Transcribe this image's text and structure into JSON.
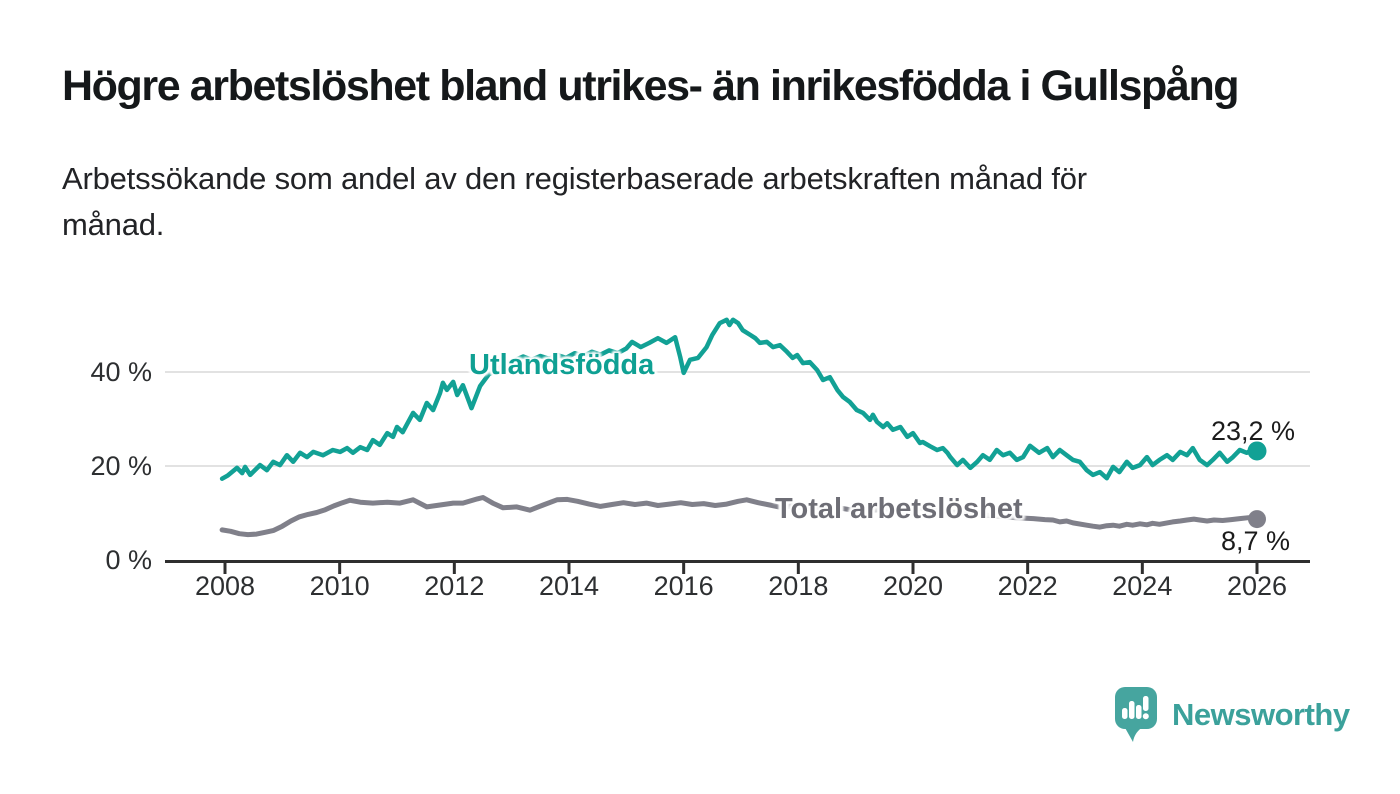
{
  "header": {
    "title": "Högre arbetslöshet bland utrikes- än inrikesfödda i Gullspång",
    "subtitle_lines": [
      "Arbetssökande som andel av den registerbaserade arbetskraften månad för",
      "månad."
    ]
  },
  "chart_data": {
    "type": "line",
    "title": "Högre arbetslöshet bland utrikes- än inrikesfödda i Gullspång",
    "subtitle": "Arbetssökande som andel av den registerbaserade arbetskraften månad för månad.",
    "unit": "%",
    "grid": "horizontal-only",
    "legend_position": "inline-labels",
    "x_range": [
      2007.95,
      2026.9
    ],
    "y_range": [
      0,
      53
    ],
    "x_ticks": [
      2008,
      2010,
      2012,
      2014,
      2016,
      2018,
      2020,
      2022,
      2024,
      2026
    ],
    "y_ticks": [
      {
        "value": 0,
        "label": "0 %"
      },
      {
        "value": 20,
        "label": "20 %"
      },
      {
        "value": 40,
        "label": "40 %"
      }
    ],
    "series": [
      {
        "name": "Utlandsfödda",
        "color": "#12a195",
        "end_label": "23,2 %",
        "end_value": 23.2,
        "points": [
          [
            2007.95,
            17.3
          ],
          [
            2008.05,
            18.0
          ],
          [
            2008.21,
            19.6
          ],
          [
            2008.3,
            18.5
          ],
          [
            2008.35,
            19.8
          ],
          [
            2008.44,
            18.1
          ],
          [
            2008.61,
            20.2
          ],
          [
            2008.73,
            19.1
          ],
          [
            2008.84,
            20.9
          ],
          [
            2008.96,
            20.2
          ],
          [
            2009.08,
            22.3
          ],
          [
            2009.19,
            20.9
          ],
          [
            2009.31,
            22.8
          ],
          [
            2009.43,
            21.9
          ],
          [
            2009.54,
            23.0
          ],
          [
            2009.71,
            22.3
          ],
          [
            2009.88,
            23.4
          ],
          [
            2010.01,
            23.0
          ],
          [
            2010.13,
            23.8
          ],
          [
            2010.23,
            22.8
          ],
          [
            2010.36,
            24.0
          ],
          [
            2010.48,
            23.4
          ],
          [
            2010.58,
            25.5
          ],
          [
            2010.7,
            24.5
          ],
          [
            2010.83,
            27.0
          ],
          [
            2010.93,
            26.2
          ],
          [
            2011.0,
            28.3
          ],
          [
            2011.1,
            27.2
          ],
          [
            2011.28,
            31.3
          ],
          [
            2011.4,
            29.8
          ],
          [
            2011.52,
            33.4
          ],
          [
            2011.63,
            31.9
          ],
          [
            2011.75,
            35.5
          ],
          [
            2011.8,
            37.7
          ],
          [
            2011.87,
            36.2
          ],
          [
            2011.98,
            37.9
          ],
          [
            2012.05,
            35.1
          ],
          [
            2012.15,
            37.2
          ],
          [
            2012.3,
            32.3
          ],
          [
            2012.45,
            37.0
          ],
          [
            2012.6,
            39.5
          ],
          [
            2012.75,
            40.5
          ],
          [
            2012.9,
            41.8
          ],
          [
            2013.05,
            42.5
          ],
          [
            2013.2,
            43.3
          ],
          [
            2013.35,
            42.6
          ],
          [
            2013.5,
            43.4
          ],
          [
            2013.65,
            42.8
          ],
          [
            2013.8,
            43.6
          ],
          [
            2013.95,
            43.0
          ],
          [
            2014.1,
            44.0
          ],
          [
            2014.25,
            43.4
          ],
          [
            2014.4,
            44.3
          ],
          [
            2014.55,
            43.7
          ],
          [
            2014.7,
            44.6
          ],
          [
            2014.85,
            44.0
          ],
          [
            2015.0,
            45.0
          ],
          [
            2015.1,
            46.4
          ],
          [
            2015.25,
            45.3
          ],
          [
            2015.4,
            46.2
          ],
          [
            2015.55,
            47.2
          ],
          [
            2015.7,
            46.2
          ],
          [
            2015.85,
            47.4
          ],
          [
            2015.94,
            43.2
          ],
          [
            2016.0,
            39.8
          ],
          [
            2016.11,
            42.6
          ],
          [
            2016.25,
            43.0
          ],
          [
            2016.4,
            45.3
          ],
          [
            2016.5,
            47.9
          ],
          [
            2016.63,
            50.4
          ],
          [
            2016.75,
            51.1
          ],
          [
            2016.8,
            50.0
          ],
          [
            2016.86,
            51.1
          ],
          [
            2016.95,
            50.4
          ],
          [
            2017.03,
            48.9
          ],
          [
            2017.16,
            47.9
          ],
          [
            2017.25,
            47.2
          ],
          [
            2017.33,
            46.2
          ],
          [
            2017.45,
            46.4
          ],
          [
            2017.56,
            45.3
          ],
          [
            2017.68,
            45.7
          ],
          [
            2017.8,
            44.3
          ],
          [
            2017.9,
            43.0
          ],
          [
            2017.98,
            43.6
          ],
          [
            2018.08,
            41.9
          ],
          [
            2018.2,
            42.1
          ],
          [
            2018.33,
            40.4
          ],
          [
            2018.43,
            38.3
          ],
          [
            2018.55,
            38.9
          ],
          [
            2018.68,
            36.2
          ],
          [
            2018.78,
            34.7
          ],
          [
            2018.9,
            33.6
          ],
          [
            2019.02,
            31.9
          ],
          [
            2019.13,
            31.3
          ],
          [
            2019.25,
            29.8
          ],
          [
            2019.3,
            30.9
          ],
          [
            2019.37,
            29.4
          ],
          [
            2019.48,
            28.3
          ],
          [
            2019.55,
            29.1
          ],
          [
            2019.65,
            27.7
          ],
          [
            2019.78,
            28.3
          ],
          [
            2019.9,
            26.2
          ],
          [
            2020.0,
            27.0
          ],
          [
            2020.12,
            24.9
          ],
          [
            2020.17,
            25.1
          ],
          [
            2020.3,
            24.2
          ],
          [
            2020.42,
            23.4
          ],
          [
            2020.52,
            23.8
          ],
          [
            2020.6,
            22.8
          ],
          [
            2020.65,
            21.9
          ],
          [
            2020.77,
            20.2
          ],
          [
            2020.87,
            21.3
          ],
          [
            2021.0,
            19.6
          ],
          [
            2021.12,
            20.9
          ],
          [
            2021.22,
            22.3
          ],
          [
            2021.34,
            21.3
          ],
          [
            2021.46,
            23.4
          ],
          [
            2021.57,
            22.3
          ],
          [
            2021.69,
            22.8
          ],
          [
            2021.81,
            21.3
          ],
          [
            2021.92,
            21.9
          ],
          [
            2022.04,
            24.3
          ],
          [
            2022.2,
            22.8
          ],
          [
            2022.34,
            23.8
          ],
          [
            2022.44,
            21.9
          ],
          [
            2022.56,
            23.4
          ],
          [
            2022.68,
            22.3
          ],
          [
            2022.79,
            21.3
          ],
          [
            2022.91,
            20.9
          ],
          [
            2023.03,
            19.1
          ],
          [
            2023.14,
            18.1
          ],
          [
            2023.26,
            18.7
          ],
          [
            2023.38,
            17.4
          ],
          [
            2023.49,
            19.8
          ],
          [
            2023.6,
            18.7
          ],
          [
            2023.73,
            20.9
          ],
          [
            2023.83,
            19.6
          ],
          [
            2023.96,
            20.2
          ],
          [
            2024.08,
            21.9
          ],
          [
            2024.18,
            20.2
          ],
          [
            2024.3,
            21.3
          ],
          [
            2024.43,
            22.3
          ],
          [
            2024.53,
            21.3
          ],
          [
            2024.66,
            23.0
          ],
          [
            2024.78,
            22.3
          ],
          [
            2024.88,
            23.8
          ],
          [
            2025.0,
            21.3
          ],
          [
            2025.13,
            20.2
          ],
          [
            2025.23,
            21.3
          ],
          [
            2025.35,
            22.8
          ],
          [
            2025.48,
            20.9
          ],
          [
            2025.58,
            21.9
          ],
          [
            2025.7,
            23.4
          ],
          [
            2025.82,
            22.8
          ],
          [
            2025.91,
            23.4
          ],
          [
            2026.0,
            23.2
          ]
        ]
      },
      {
        "name": "Total arbetslöshet",
        "color": "#80808a",
        "end_label": "8,7 %",
        "end_value": 8.7,
        "points": [
          [
            2007.95,
            6.4
          ],
          [
            2008.1,
            6.1
          ],
          [
            2008.25,
            5.6
          ],
          [
            2008.4,
            5.4
          ],
          [
            2008.55,
            5.5
          ],
          [
            2008.7,
            5.9
          ],
          [
            2008.85,
            6.3
          ],
          [
            2009.0,
            7.2
          ],
          [
            2009.15,
            8.3
          ],
          [
            2009.3,
            9.2
          ],
          [
            2009.45,
            9.7
          ],
          [
            2009.6,
            10.1
          ],
          [
            2009.75,
            10.7
          ],
          [
            2009.9,
            11.5
          ],
          [
            2010.05,
            12.2
          ],
          [
            2010.18,
            12.7
          ],
          [
            2010.36,
            12.3
          ],
          [
            2010.58,
            12.1
          ],
          [
            2010.83,
            12.3
          ],
          [
            2011.05,
            12.1
          ],
          [
            2011.28,
            12.8
          ],
          [
            2011.52,
            11.3
          ],
          [
            2011.75,
            11.7
          ],
          [
            2011.98,
            12.1
          ],
          [
            2012.15,
            12.1
          ],
          [
            2012.4,
            13.0
          ],
          [
            2012.5,
            13.3
          ],
          [
            2012.67,
            12.1
          ],
          [
            2012.85,
            11.1
          ],
          [
            2013.09,
            11.3
          ],
          [
            2013.32,
            10.6
          ],
          [
            2013.55,
            11.7
          ],
          [
            2013.79,
            12.8
          ],
          [
            2013.97,
            12.9
          ],
          [
            2014.15,
            12.5
          ],
          [
            2014.35,
            11.9
          ],
          [
            2014.55,
            11.4
          ],
          [
            2014.75,
            11.8
          ],
          [
            2014.95,
            12.2
          ],
          [
            2015.15,
            11.8
          ],
          [
            2015.35,
            12.1
          ],
          [
            2015.55,
            11.6
          ],
          [
            2015.75,
            11.9
          ],
          [
            2015.95,
            12.2
          ],
          [
            2016.15,
            11.8
          ],
          [
            2016.35,
            12.0
          ],
          [
            2016.55,
            11.6
          ],
          [
            2016.75,
            11.9
          ],
          [
            2016.95,
            12.5
          ],
          [
            2017.1,
            12.8
          ],
          [
            2017.3,
            12.2
          ],
          [
            2017.5,
            11.7
          ],
          [
            2017.7,
            11.2
          ],
          [
            2017.9,
            11.5
          ],
          [
            2018.1,
            11.1
          ],
          [
            2018.3,
            11.3
          ],
          [
            2018.5,
            10.9
          ],
          [
            2018.7,
            11.1
          ],
          [
            2018.9,
            10.7
          ],
          [
            2019.1,
            10.9
          ],
          [
            2019.3,
            10.6
          ],
          [
            2019.5,
            10.8
          ],
          [
            2019.7,
            10.9
          ],
          [
            2019.9,
            11.1
          ],
          [
            2020.07,
            11.3
          ],
          [
            2020.3,
            10.6
          ],
          [
            2020.6,
            10.3
          ],
          [
            2020.9,
            10.0
          ],
          [
            2021.2,
            9.6
          ],
          [
            2021.5,
            9.3
          ],
          [
            2021.8,
            9.0
          ],
          [
            2022.1,
            8.8
          ],
          [
            2022.3,
            8.6
          ],
          [
            2022.44,
            8.5
          ],
          [
            2022.56,
            8.1
          ],
          [
            2022.68,
            8.3
          ],
          [
            2022.79,
            7.9
          ],
          [
            2023.03,
            7.4
          ],
          [
            2023.14,
            7.2
          ],
          [
            2023.26,
            7.0
          ],
          [
            2023.38,
            7.3
          ],
          [
            2023.49,
            7.4
          ],
          [
            2023.6,
            7.2
          ],
          [
            2023.73,
            7.6
          ],
          [
            2023.83,
            7.4
          ],
          [
            2023.96,
            7.7
          ],
          [
            2024.08,
            7.5
          ],
          [
            2024.18,
            7.8
          ],
          [
            2024.3,
            7.6
          ],
          [
            2024.43,
            7.9
          ],
          [
            2024.53,
            8.1
          ],
          [
            2024.66,
            8.3
          ],
          [
            2024.78,
            8.5
          ],
          [
            2024.9,
            8.7
          ],
          [
            2025.0,
            8.5
          ],
          [
            2025.13,
            8.3
          ],
          [
            2025.25,
            8.5
          ],
          [
            2025.4,
            8.4
          ],
          [
            2025.55,
            8.6
          ],
          [
            2025.7,
            8.8
          ],
          [
            2025.85,
            9.0
          ],
          [
            2026.0,
            8.7
          ]
        ]
      }
    ]
  },
  "branding": {
    "name": "Newsworthy",
    "logo_color": "#46a59f",
    "text_color": "#3ba19b"
  },
  "colors": {
    "background": "#ffffff",
    "axis": "#2f2f2f",
    "gridline": "#d8d8d8",
    "tick_text": "#2d2f31"
  }
}
